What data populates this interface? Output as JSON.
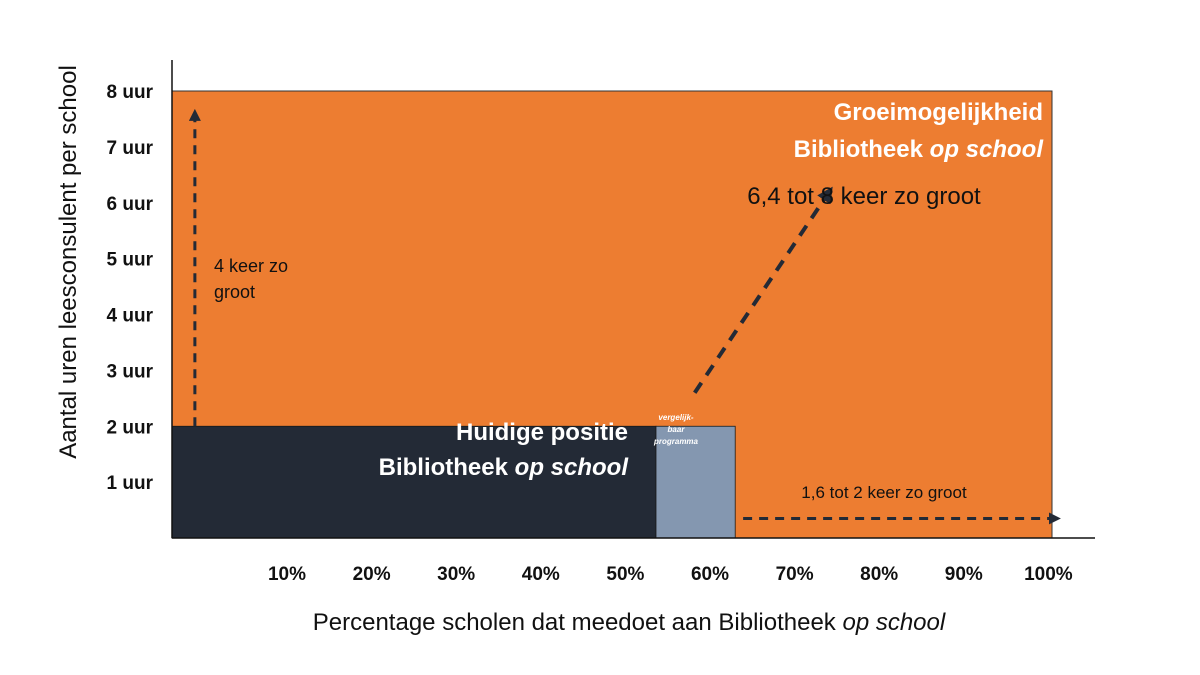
{
  "chart_data": {
    "type": "area",
    "xlabel": "Percentage scholen dat meedoet aan Bibliotheek",
    "xlabel_italic": "op school",
    "ylabel": "Aantal uren leesconsulent per school",
    "x_ticks": [
      "10%",
      "20%",
      "30%",
      "40%",
      "50%",
      "60%",
      "70%",
      "80%",
      "90%",
      "100%"
    ],
    "y_ticks": [
      "1 uur",
      "2 uur",
      "3 uur",
      "4 uur",
      "5 uur",
      "6 uur",
      "7 uur",
      "8 uur"
    ],
    "xlim": [
      0,
      100
    ],
    "ylim": [
      0,
      8
    ],
    "regions": [
      {
        "name": "Groeimogelijkheid",
        "x": [
          0,
          100
        ],
        "y": [
          0,
          8
        ],
        "color": "#ED7D31"
      },
      {
        "name": "Huidige positie",
        "x": [
          0,
          55
        ],
        "y": [
          0,
          2
        ],
        "color": "#232A36"
      },
      {
        "name": "vergelijkbaar programma",
        "x": [
          55,
          64
        ],
        "y": [
          0,
          2
        ],
        "color": "#8497B0"
      }
    ],
    "arrows": [
      {
        "from": [
          2.6,
          2.0
        ],
        "to": [
          2.6,
          7.6
        ]
      },
      {
        "from": [
          59.4,
          2.6
        ],
        "to": [
          74.7,
          6.2
        ]
      },
      {
        "from": [
          64.9,
          0.35
        ],
        "to": [
          100.5,
          0.35
        ]
      }
    ]
  },
  "labels": {
    "growth_line1": "Groeimogelijkheid",
    "growth_line2_main": "Bibliotheek",
    "growth_line2_italic": "op school",
    "current_line1": "Huidige positie",
    "current_line2_main": "Bibliotheek",
    "current_line2_italic": "op school",
    "comparable_line1": "vergelijk-",
    "comparable_line2": "baar",
    "comparable_line3": "programma",
    "vertical_arrow_line1": "4 keer zo",
    "vertical_arrow_line2": "groot",
    "diagonal_arrow": "6,4 tot 8 keer zo groot",
    "horizontal_arrow": "1,6 tot 2 keer zo groot"
  },
  "colors": {
    "growth": "#ED7D31",
    "current": "#232A36",
    "comparable": "#8497B0",
    "arrow": "#232A36"
  }
}
